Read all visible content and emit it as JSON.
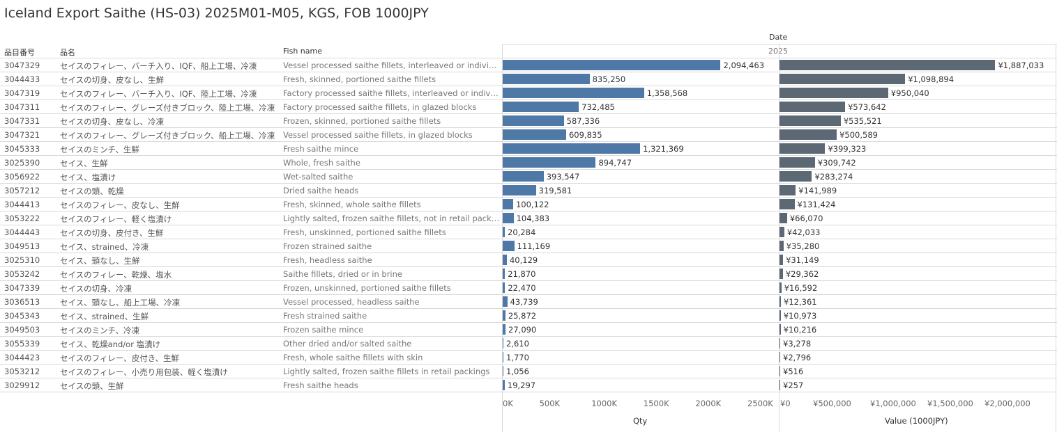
{
  "title": "Iceland Export Saithe (HS-03) 2025M01-M05, KGS, FOB 1000JPY",
  "headers": {
    "code": "品目番号",
    "name_ja": "品名",
    "fish_name": "Fish name",
    "date": "Date",
    "year": "2025"
  },
  "colors": {
    "qty_bar": "#4e79a7",
    "value_bar": "#5d6875"
  },
  "chart_data": [
    {
      "type": "bar",
      "orientation": "horizontal",
      "xlabel": "Qty",
      "xlim": [
        0,
        2600000
      ],
      "ticks": [
        0,
        500000,
        1000000,
        1500000,
        2000000,
        2500000
      ],
      "tick_labels": [
        "0K",
        "500K",
        "1000K",
        "1500K",
        "2000K",
        "2500K"
      ]
    },
    {
      "type": "bar",
      "orientation": "horizontal",
      "xlabel": "Value (1000JPY)",
      "xlim": [
        0,
        2300000
      ],
      "ticks": [
        0,
        500000,
        1000000,
        1500000,
        2000000
      ],
      "tick_labels": [
        "¥0",
        "¥500,000",
        "¥1,000,000",
        "¥1,500,000",
        "¥2,000,000"
      ]
    }
  ],
  "rows": [
    {
      "code": "3047329",
      "ja": "セイスのフィレー、バーチ入り、IQF、船上工場、冷凍",
      "en": "Vessel processed saithe fillets, interleaved or individu..",
      "qty": 2094463,
      "qty_label": "2,094,463",
      "value": 1887033,
      "value_label": "¥1,887,033"
    },
    {
      "code": "3044433",
      "ja": "セイスの切身、皮なし、生鮮",
      "en": "Fresh, skinned, portioned saithe fillets",
      "qty": 835250,
      "qty_label": "835,250",
      "value": 1098894,
      "value_label": "¥1,098,894"
    },
    {
      "code": "3047319",
      "ja": "セイスのフィレー、バーチ入り、IQF、陸上工場、冷凍",
      "en": "Factory processed saithe fillets, interleaved or individ..",
      "qty": 1358568,
      "qty_label": "1,358,568",
      "value": 950040,
      "value_label": "¥950,040"
    },
    {
      "code": "3047311",
      "ja": "セイスのフィレー、グレーズ付きブロック、陸上工場、冷凍",
      "en": "Factory processed saithe fillets, in glazed blocks",
      "qty": 732485,
      "qty_label": "732,485",
      "value": 573642,
      "value_label": "¥573,642"
    },
    {
      "code": "3047331",
      "ja": "セイスの切身、皮なし、冷凍",
      "en": "Frozen, skinned, portioned saithe fillets",
      "qty": 587336,
      "qty_label": "587,336",
      "value": 535521,
      "value_label": "¥535,521"
    },
    {
      "code": "3047321",
      "ja": "セイスのフィレー、グレーズ付きブロック、船上工場、冷凍",
      "en": "Vessel processed saithe fillets, in glazed blocks",
      "qty": 609835,
      "qty_label": "609,835",
      "value": 500589,
      "value_label": "¥500,589"
    },
    {
      "code": "3045333",
      "ja": "セイスのミンチ、生鮮",
      "en": "Fresh saithe mince",
      "qty": 1321369,
      "qty_label": "1,321,369",
      "value": 399323,
      "value_label": "¥399,323"
    },
    {
      "code": "3025390",
      "ja": "セイス、生鮮",
      "en": "Whole, fresh saithe",
      "qty": 894747,
      "qty_label": "894,747",
      "value": 309742,
      "value_label": "¥309,742"
    },
    {
      "code": "3056922",
      "ja": "セイス、塩漬け",
      "en": "Wet-salted saithe",
      "qty": 393547,
      "qty_label": "393,547",
      "value": 283274,
      "value_label": "¥283,274"
    },
    {
      "code": "3057212",
      "ja": "セイスの頭、乾燥",
      "en": "Dried saithe heads",
      "qty": 319581,
      "qty_label": "319,581",
      "value": 141989,
      "value_label": "¥141,989"
    },
    {
      "code": "3044413",
      "ja": "セイスのフィレー、皮なし、生鮮",
      "en": "Fresh, skinned, whole saithe fillets",
      "qty": 100122,
      "qty_label": "100,122",
      "value": 131424,
      "value_label": "¥131,424"
    },
    {
      "code": "3053222",
      "ja": "セイスのフィレー、軽く塩漬け",
      "en": "Lightly salted, frozen saithe fillets, not in retail packin..",
      "qty": 104383,
      "qty_label": "104,383",
      "value": 66070,
      "value_label": "¥66,070"
    },
    {
      "code": "3044443",
      "ja": "セイスの切身、皮付き、生鮮",
      "en": "Fresh, unskinned, portioned saithe fillets",
      "qty": 20284,
      "qty_label": "20,284",
      "value": 42033,
      "value_label": "¥42,033"
    },
    {
      "code": "3049513",
      "ja": "セイス、strained、冷凍",
      "en": "Frozen strained saithe",
      "qty": 111169,
      "qty_label": "111,169",
      "value": 35280,
      "value_label": "¥35,280"
    },
    {
      "code": "3025310",
      "ja": "セイス、頭なし、生鮮",
      "en": "Fresh, headless saithe",
      "qty": 40129,
      "qty_label": "40,129",
      "value": 31149,
      "value_label": "¥31,149"
    },
    {
      "code": "3053242",
      "ja": "セイスのフィレー、乾燥、塩水",
      "en": "Saithe fillets, dried or in brine",
      "qty": 21870,
      "qty_label": "21,870",
      "value": 29362,
      "value_label": "¥29,362"
    },
    {
      "code": "3047339",
      "ja": "セイスの切身、冷凍",
      "en": "Frozen, unskinned, portioned saithe fillets",
      "qty": 22470,
      "qty_label": "22,470",
      "value": 16592,
      "value_label": "¥16,592"
    },
    {
      "code": "3036513",
      "ja": "セイス、頭なし、船上工場、冷凍",
      "en": "Vessel processed, headless saithe",
      "qty": 43739,
      "qty_label": "43,739",
      "value": 12361,
      "value_label": "¥12,361"
    },
    {
      "code": "3045343",
      "ja": "セイス、strained、生鮮",
      "en": "Fresh strained saithe",
      "qty": 25872,
      "qty_label": "25,872",
      "value": 10973,
      "value_label": "¥10,973"
    },
    {
      "code": "3049503",
      "ja": "セイスのミンチ、冷凍",
      "en": "Frozen saithe mince",
      "qty": 27090,
      "qty_label": "27,090",
      "value": 10216,
      "value_label": "¥10,216"
    },
    {
      "code": "3055339",
      "ja": "セイス、乾燥and/or 塩漬け",
      "en": "Other dried and/or salted saithe",
      "qty": 2610,
      "qty_label": "2,610",
      "value": 3278,
      "value_label": "¥3,278"
    },
    {
      "code": "3044423",
      "ja": "セイスのフィレー、皮付き、生鮮",
      "en": "Fresh, whole saithe fillets with skin",
      "qty": 1770,
      "qty_label": "1,770",
      "value": 2796,
      "value_label": "¥2,796"
    },
    {
      "code": "3053212",
      "ja": "セイスのフィレー、小売り用包装、軽く塩漬け",
      "en": "Lightly salted, frozen saithe fillets in retail packings",
      "qty": 1056,
      "qty_label": "1,056",
      "value": 516,
      "value_label": "¥516"
    },
    {
      "code": "3029912",
      "ja": "セイスの頭、生鮮",
      "en": "Fresh saithe heads",
      "qty": 19297,
      "qty_label": "19,297",
      "value": 257,
      "value_label": "¥257"
    }
  ]
}
